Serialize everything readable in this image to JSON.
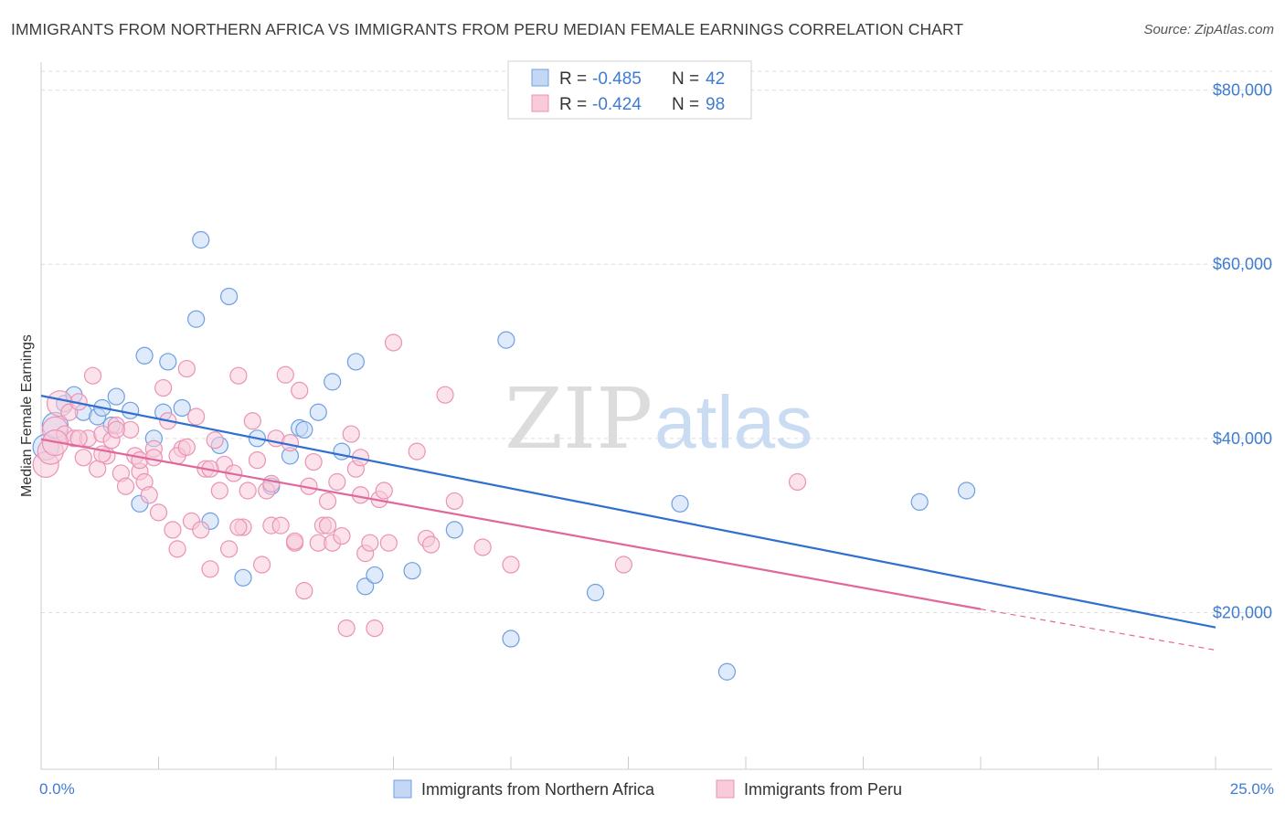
{
  "title": "IMMIGRANTS FROM NORTHERN AFRICA VS IMMIGRANTS FROM PERU MEDIAN FEMALE EARNINGS CORRELATION CHART",
  "source": "Source: ZipAtlas.com",
  "watermark": {
    "zip": "ZIP",
    "atlas": "atlas"
  },
  "legend": {
    "rows": [
      {
        "r_label": "R = ",
        "r_value": "-0.485",
        "n_label": "N = ",
        "n_value": "42"
      },
      {
        "r_label": "R = ",
        "r_value": "-0.424",
        "n_label": "N = ",
        "n_value": "98"
      }
    ]
  },
  "chart_data": {
    "type": "scatter",
    "title": "IMMIGRANTS FROM NORTHERN AFRICA VS IMMIGRANTS FROM PERU MEDIAN FEMALE EARNINGS CORRELATION CHART",
    "xlabel": "",
    "ylabel": "Median Female Earnings",
    "xlim": [
      0,
      25
    ],
    "ylim": [
      2000,
      83000
    ],
    "x_tick_labels": {
      "left": "0.0%",
      "right": "25.0%"
    },
    "y_ticks": [
      {
        "value": 20000,
        "label": "$20,000"
      },
      {
        "value": 40000,
        "label": "$40,000"
      },
      {
        "value": 60000,
        "label": "$60,000"
      },
      {
        "value": 80000,
        "label": "$80,000"
      }
    ],
    "grid": true,
    "legend_position": "top-center",
    "series": [
      {
        "name": "Immigrants from Northern Africa",
        "color": "#6f9fe0",
        "fill": "#c4d8f5",
        "line_color": "#2f6fcf",
        "trend": {
          "x1": 0.0,
          "y1": 44900,
          "x2": 25.0,
          "y2": 18300
        },
        "points": [
          [
            0.1,
            39000
          ],
          [
            0.3,
            41500
          ],
          [
            0.5,
            44000
          ],
          [
            0.7,
            45000
          ],
          [
            0.9,
            43000
          ],
          [
            1.2,
            42500
          ],
          [
            1.3,
            43500
          ],
          [
            1.5,
            41500
          ],
          [
            1.6,
            44800
          ],
          [
            1.9,
            43200
          ],
          [
            2.1,
            32500
          ],
          [
            2.2,
            49500
          ],
          [
            2.4,
            40000
          ],
          [
            2.7,
            48800
          ],
          [
            3.0,
            43500
          ],
          [
            3.3,
            53700
          ],
          [
            3.4,
            62800
          ],
          [
            3.6,
            30500
          ],
          [
            3.8,
            39200
          ],
          [
            4.0,
            56300
          ],
          [
            4.3,
            24000
          ],
          [
            4.6,
            40000
          ],
          [
            4.9,
            34500
          ],
          [
            5.3,
            38000
          ],
          [
            5.5,
            41200
          ],
          [
            5.6,
            41000
          ],
          [
            5.9,
            43000
          ],
          [
            6.2,
            46500
          ],
          [
            6.4,
            38500
          ],
          [
            6.7,
            48800
          ],
          [
            6.9,
            23000
          ],
          [
            7.1,
            24300
          ],
          [
            7.9,
            24800
          ],
          [
            8.8,
            29500
          ],
          [
            9.9,
            51300
          ],
          [
            10.0,
            17000
          ],
          [
            11.8,
            22300
          ],
          [
            13.6,
            32500
          ],
          [
            14.6,
            13200
          ],
          [
            18.7,
            32700
          ],
          [
            19.7,
            34000
          ],
          [
            2.6,
            43000
          ]
        ]
      },
      {
        "name": "Immigrants from Peru",
        "color": "#ea93b3",
        "fill": "#f8cada",
        "line_color": "#e0679a",
        "trend": {
          "x1": 0.0,
          "y1": 39900,
          "x2": 20.0,
          "y2": 20400
        },
        "trend_dashed": {
          "x1": 20.0,
          "y1": 20400,
          "x2": 25.0,
          "y2": 15700
        },
        "points": [
          [
            0.1,
            37000
          ],
          [
            0.2,
            38500
          ],
          [
            0.3,
            41000
          ],
          [
            0.4,
            44000
          ],
          [
            0.5,
            40500
          ],
          [
            0.6,
            43000
          ],
          [
            0.7,
            40000
          ],
          [
            0.8,
            44200
          ],
          [
            0.9,
            37800
          ],
          [
            1.0,
            40000
          ],
          [
            1.1,
            47200
          ],
          [
            1.2,
            36500
          ],
          [
            1.3,
            40500
          ],
          [
            1.4,
            38000
          ],
          [
            1.5,
            39800
          ],
          [
            1.6,
            41500
          ],
          [
            1.7,
            36000
          ],
          [
            1.8,
            34500
          ],
          [
            1.9,
            41000
          ],
          [
            2.0,
            38000
          ],
          [
            2.1,
            36200
          ],
          [
            2.2,
            35000
          ],
          [
            2.3,
            33500
          ],
          [
            2.4,
            38800
          ],
          [
            2.5,
            31500
          ],
          [
            2.6,
            45800
          ],
          [
            2.7,
            42000
          ],
          [
            2.8,
            29500
          ],
          [
            2.9,
            27300
          ],
          [
            3.0,
            38800
          ],
          [
            3.1,
            48000
          ],
          [
            3.2,
            30500
          ],
          [
            3.3,
            42500
          ],
          [
            3.4,
            29500
          ],
          [
            3.5,
            36500
          ],
          [
            3.6,
            25000
          ],
          [
            3.7,
            39800
          ],
          [
            3.8,
            34000
          ],
          [
            3.9,
            37000
          ],
          [
            4.0,
            27300
          ],
          [
            4.1,
            36000
          ],
          [
            4.2,
            47200
          ],
          [
            4.3,
            29800
          ],
          [
            4.4,
            34000
          ],
          [
            4.5,
            42000
          ],
          [
            4.6,
            37500
          ],
          [
            4.7,
            25500
          ],
          [
            4.8,
            34000
          ],
          [
            4.9,
            30000
          ],
          [
            5.0,
            40000
          ],
          [
            5.1,
            30000
          ],
          [
            5.2,
            47300
          ],
          [
            5.3,
            39500
          ],
          [
            5.4,
            28000
          ],
          [
            5.5,
            45500
          ],
          [
            5.6,
            22500
          ],
          [
            5.7,
            34500
          ],
          [
            5.8,
            37300
          ],
          [
            5.9,
            28000
          ],
          [
            6.0,
            30000
          ],
          [
            6.1,
            32800
          ],
          [
            6.2,
            28000
          ],
          [
            6.3,
            35000
          ],
          [
            6.4,
            28800
          ],
          [
            6.5,
            18200
          ],
          [
            6.6,
            40500
          ],
          [
            6.7,
            36500
          ],
          [
            6.8,
            33500
          ],
          [
            6.9,
            26800
          ],
          [
            7.0,
            28000
          ],
          [
            7.1,
            18200
          ],
          [
            7.2,
            33000
          ],
          [
            7.3,
            34000
          ],
          [
            7.5,
            51000
          ],
          [
            8.0,
            38500
          ],
          [
            8.2,
            28500
          ],
          [
            8.3,
            27800
          ],
          [
            8.6,
            45000
          ],
          [
            8.8,
            32800
          ],
          [
            9.4,
            27500
          ],
          [
            10.0,
            25500
          ],
          [
            12.4,
            25500
          ],
          [
            16.1,
            35000
          ],
          [
            0.8,
            40000
          ],
          [
            1.6,
            41000
          ],
          [
            2.1,
            37500
          ],
          [
            2.9,
            38000
          ],
          [
            3.6,
            36500
          ],
          [
            4.2,
            29800
          ],
          [
            4.9,
            34800
          ],
          [
            5.4,
            28200
          ],
          [
            6.1,
            30000
          ],
          [
            6.8,
            37800
          ],
          [
            7.4,
            28000
          ],
          [
            1.3,
            38200
          ],
          [
            2.4,
            37800
          ],
          [
            3.1,
            39000
          ],
          [
            0.3,
            39500
          ]
        ]
      }
    ]
  }
}
